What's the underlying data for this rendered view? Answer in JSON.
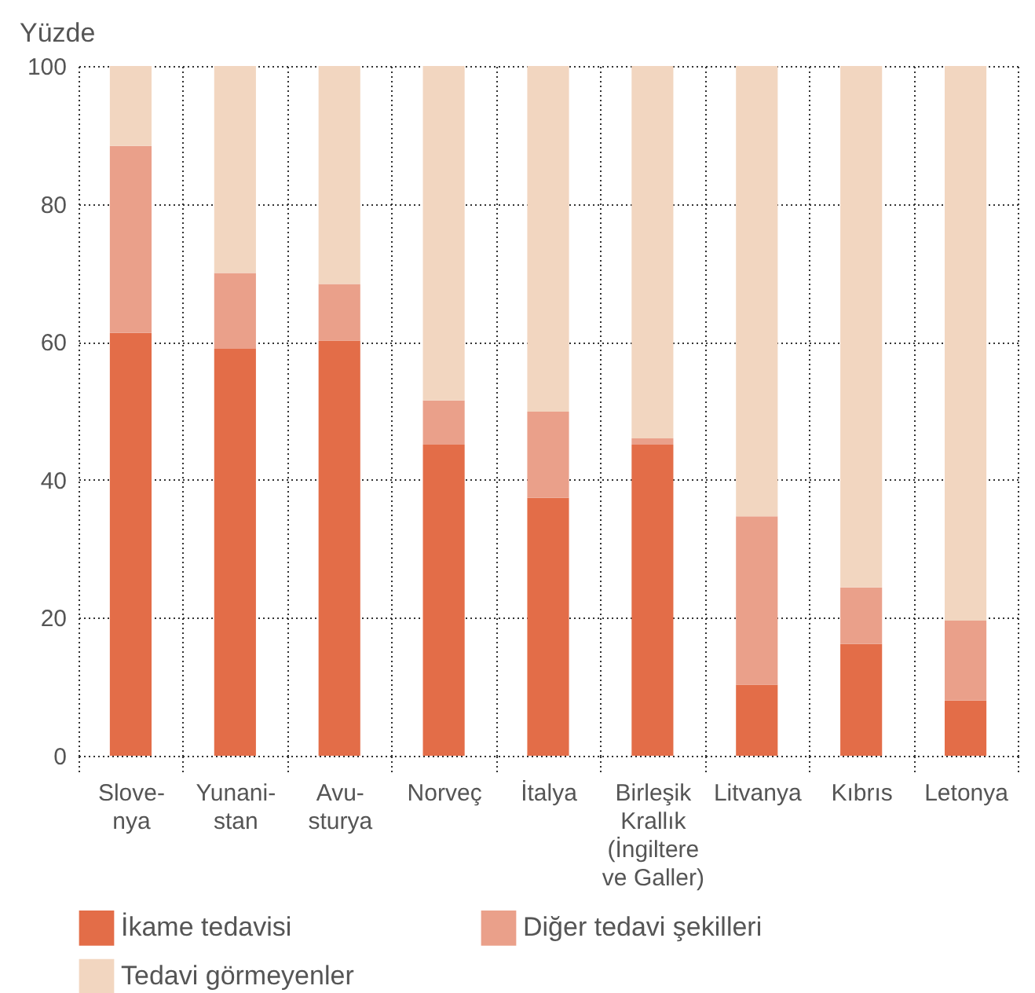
{
  "chart_data": {
    "type": "bar",
    "stacked": true,
    "ylabel": "Yüzde",
    "categories": [
      "Slove-\nnya",
      "Yunani-\nstan",
      "Avu-\nsturya",
      "Norveç",
      "İtalya",
      "Birleşik\nKrallık\n(İngiltere\nve Galler)",
      "Litvanya",
      "Kıbrıs",
      "Letonya"
    ],
    "series": [
      {
        "name": "İkame tedavisi",
        "color": "#e36d48",
        "values": [
          61.3,
          59.0,
          60.2,
          45.1,
          37.4,
          45.1,
          10.3,
          16.2,
          8.0
        ]
      },
      {
        "name": "Diğer tedavi şekilleri",
        "color": "#eaa08a",
        "values": [
          27.1,
          11.0,
          8.2,
          6.4,
          12.5,
          0.9,
          24.4,
          8.2,
          11.6
        ]
      },
      {
        "name": "Tedavi görmeyenler",
        "color": "#f2d6c0",
        "values": [
          11.6,
          30.0,
          31.6,
          48.5,
          50.1,
          54.0,
          65.3,
          75.6,
          80.4
        ]
      }
    ],
    "ylim": [
      0,
      100
    ],
    "yticks": [
      0,
      20,
      40,
      60,
      80,
      100
    ],
    "grid": true,
    "legend": "bottom"
  }
}
